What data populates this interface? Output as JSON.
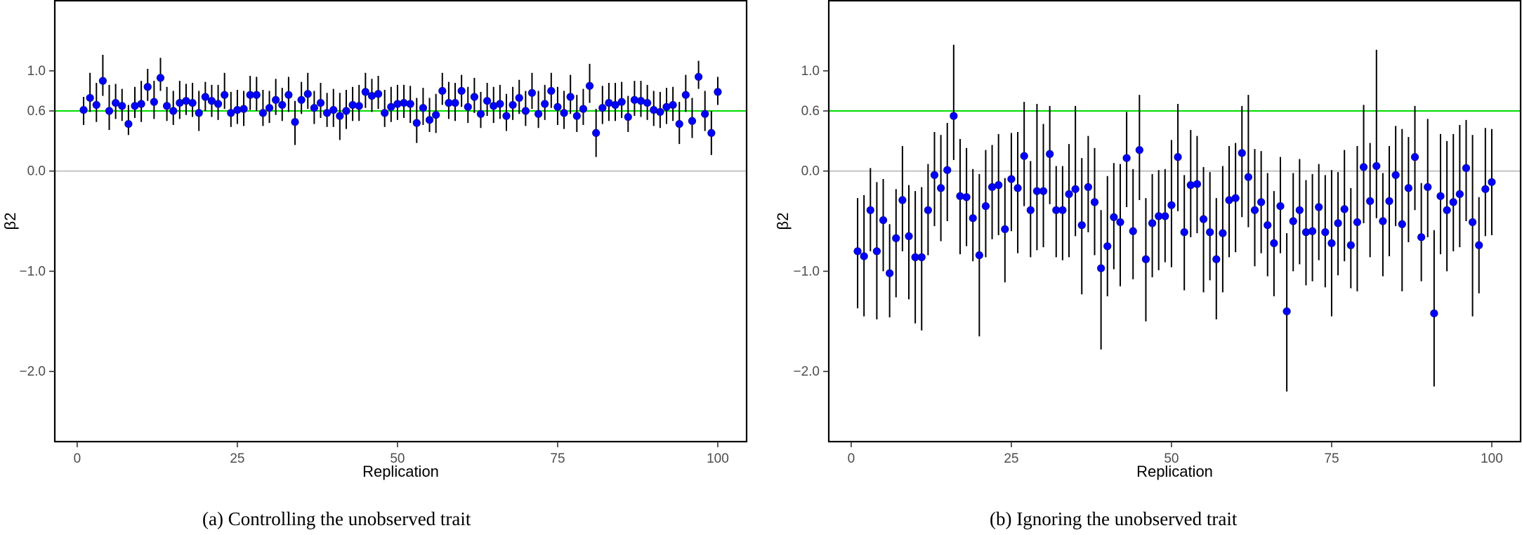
{
  "chart_data": [
    {
      "type": "scatter",
      "subtype": "point-with-error-bars",
      "caption": "(a) Controlling the unobserved trait",
      "xlabel": "Replication",
      "ylabel": "β2",
      "xlim": [
        -3.5,
        104.5
      ],
      "ylim": [
        -2.7,
        1.7
      ],
      "xticks": [
        0,
        25,
        50,
        75,
        100
      ],
      "xtick_labels": [
        "0",
        "25",
        "50",
        "75",
        "100"
      ],
      "yticks": [
        1.0,
        0.6,
        0.0,
        -1.0,
        -2.0
      ],
      "ytick_labels": [
        "1.0",
        "0.6",
        "0.0",
        "−1.0",
        "−2.0"
      ],
      "reference_lines": [
        {
          "value": 0.6,
          "color": "#00dd00"
        },
        {
          "value": 0.0,
          "color": "#b3b3b3"
        }
      ],
      "x": [
        1,
        2,
        3,
        4,
        5,
        6,
        7,
        8,
        9,
        10,
        11,
        12,
        13,
        14,
        15,
        16,
        17,
        18,
        19,
        20,
        21,
        22,
        23,
        24,
        25,
        26,
        27,
        28,
        29,
        30,
        31,
        32,
        33,
        34,
        35,
        36,
        37,
        38,
        39,
        40,
        41,
        42,
        43,
        44,
        45,
        46,
        47,
        48,
        49,
        50,
        51,
        52,
        53,
        54,
        55,
        56,
        57,
        58,
        59,
        60,
        61,
        62,
        63,
        64,
        65,
        66,
        67,
        68,
        69,
        70,
        71,
        72,
        73,
        74,
        75,
        76,
        77,
        78,
        79,
        80,
        81,
        82,
        83,
        84,
        85,
        86,
        87,
        88,
        89,
        90,
        91,
        92,
        93,
        94,
        95,
        96,
        97,
        98,
        99,
        100
      ],
      "estimate": [
        0.61,
        0.73,
        0.66,
        0.9,
        0.6,
        0.68,
        0.65,
        0.47,
        0.65,
        0.67,
        0.84,
        0.69,
        0.93,
        0.65,
        0.6,
        0.68,
        0.7,
        0.68,
        0.58,
        0.74,
        0.7,
        0.67,
        0.76,
        0.58,
        0.61,
        0.62,
        0.76,
        0.76,
        0.58,
        0.63,
        0.71,
        0.66,
        0.76,
        0.49,
        0.71,
        0.77,
        0.63,
        0.68,
        0.58,
        0.61,
        0.55,
        0.6,
        0.66,
        0.65,
        0.79,
        0.75,
        0.77,
        0.58,
        0.64,
        0.67,
        0.68,
        0.67,
        0.48,
        0.63,
        0.51,
        0.56,
        0.8,
        0.68,
        0.68,
        0.8,
        0.64,
        0.74,
        0.57,
        0.7,
        0.65,
        0.67,
        0.55,
        0.66,
        0.73,
        0.6,
        0.78,
        0.57,
        0.67,
        0.8,
        0.64,
        0.58,
        0.74,
        0.55,
        0.62,
        0.85,
        0.38,
        0.63,
        0.68,
        0.66,
        0.69,
        0.54,
        0.71,
        0.7,
        0.68,
        0.61,
        0.59,
        0.64,
        0.66,
        0.47,
        0.76,
        0.5,
        0.94,
        0.57,
        0.38,
        0.79
      ],
      "ci_low": [
        0.46,
        0.59,
        0.49,
        0.75,
        0.41,
        0.52,
        0.5,
        0.36,
        0.53,
        0.49,
        0.7,
        0.52,
        0.8,
        0.5,
        0.46,
        0.52,
        0.56,
        0.54,
        0.4,
        0.6,
        0.54,
        0.51,
        0.62,
        0.44,
        0.47,
        0.45,
        0.61,
        0.6,
        0.45,
        0.48,
        0.56,
        0.5,
        0.59,
        0.26,
        0.57,
        0.62,
        0.47,
        0.53,
        0.44,
        0.44,
        0.31,
        0.42,
        0.5,
        0.5,
        0.63,
        0.59,
        0.62,
        0.44,
        0.49,
        0.51,
        0.53,
        0.48,
        0.28,
        0.46,
        0.39,
        0.38,
        0.66,
        0.52,
        0.5,
        0.64,
        0.48,
        0.58,
        0.43,
        0.55,
        0.48,
        0.52,
        0.4,
        0.51,
        0.57,
        0.45,
        0.62,
        0.43,
        0.51,
        0.63,
        0.46,
        0.42,
        0.57,
        0.39,
        0.46,
        0.68,
        0.14,
        0.47,
        0.5,
        0.5,
        0.53,
        0.39,
        0.55,
        0.54,
        0.51,
        0.45,
        0.43,
        0.47,
        0.5,
        0.27,
        0.59,
        0.33,
        0.82,
        0.4,
        0.16,
        0.66
      ],
      "ci_high": [
        0.74,
        0.98,
        0.88,
        1.16,
        0.86,
        0.87,
        0.82,
        0.66,
        0.84,
        0.9,
        1.02,
        0.9,
        1.13,
        0.84,
        0.8,
        0.9,
        0.87,
        0.88,
        0.8,
        0.89,
        0.86,
        0.86,
        0.98,
        0.79,
        0.81,
        0.8,
        0.95,
        0.94,
        0.81,
        0.8,
        0.92,
        0.83,
        0.94,
        0.7,
        0.89,
        0.98,
        0.8,
        0.88,
        0.78,
        0.82,
        0.78,
        0.81,
        0.84,
        0.86,
        0.98,
        0.92,
        0.95,
        0.81,
        0.84,
        0.86,
        0.86,
        0.85,
        0.73,
        0.83,
        0.73,
        0.77,
        0.98,
        0.89,
        0.88,
        0.96,
        0.84,
        0.93,
        0.79,
        0.88,
        0.84,
        0.86,
        0.77,
        0.84,
        0.91,
        0.8,
        0.98,
        0.8,
        0.86,
        0.98,
        0.84,
        0.8,
        0.96,
        0.76,
        0.82,
        1.07,
        0.62,
        0.85,
        0.88,
        0.88,
        0.89,
        0.75,
        0.9,
        0.9,
        0.86,
        0.8,
        0.79,
        0.83,
        0.84,
        0.69,
        0.96,
        0.73,
        1.1,
        0.8,
        0.6,
        0.94
      ]
    },
    {
      "type": "scatter",
      "subtype": "point-with-error-bars",
      "caption": "(b) Ignoring the unobserved trait",
      "xlabel": "Replication",
      "ylabel": "β2",
      "xlim": [
        -3.5,
        104.5
      ],
      "ylim": [
        -2.7,
        1.7
      ],
      "xticks": [
        0,
        25,
        50,
        75,
        100
      ],
      "xtick_labels": [
        "0",
        "25",
        "50",
        "75",
        "100"
      ],
      "yticks": [
        1.0,
        0.6,
        0.0,
        -1.0,
        -2.0
      ],
      "ytick_labels": [
        "1.0",
        "0.6",
        "0.0",
        "−1.0",
        "−2.0"
      ],
      "reference_lines": [
        {
          "value": 0.6,
          "color": "#00dd00"
        },
        {
          "value": 0.0,
          "color": "#b3b3b3"
        }
      ],
      "x": [
        1,
        2,
        3,
        4,
        5,
        6,
        7,
        8,
        9,
        10,
        11,
        12,
        13,
        14,
        15,
        16,
        17,
        18,
        19,
        20,
        21,
        22,
        23,
        24,
        25,
        26,
        27,
        28,
        29,
        30,
        31,
        32,
        33,
        34,
        35,
        36,
        37,
        38,
        39,
        40,
        41,
        42,
        43,
        44,
        45,
        46,
        47,
        48,
        49,
        50,
        51,
        52,
        53,
        54,
        55,
        56,
        57,
        58,
        59,
        60,
        61,
        62,
        63,
        64,
        65,
        66,
        67,
        68,
        69,
        70,
        71,
        72,
        73,
        74,
        75,
        76,
        77,
        78,
        79,
        80,
        81,
        82,
        83,
        84,
        85,
        86,
        87,
        88,
        89,
        90,
        91,
        92,
        93,
        94,
        95,
        96,
        97,
        98,
        99,
        100
      ],
      "estimate": [
        -0.8,
        -0.85,
        -0.39,
        -0.8,
        -0.49,
        -1.02,
        -0.67,
        -0.29,
        -0.65,
        -0.86,
        -0.86,
        -0.39,
        -0.04,
        -0.17,
        0.01,
        0.55,
        -0.25,
        -0.26,
        -0.47,
        -0.84,
        -0.35,
        -0.16,
        -0.14,
        -0.58,
        -0.08,
        -0.17,
        0.15,
        -0.39,
        -0.2,
        -0.2,
        0.17,
        -0.39,
        -0.39,
        -0.23,
        -0.18,
        -0.54,
        -0.16,
        -0.31,
        -0.97,
        -0.75,
        -0.46,
        -0.51,
        0.13,
        -0.6,
        0.21,
        -0.88,
        -0.52,
        -0.45,
        -0.45,
        -0.34,
        0.14,
        -0.61,
        -0.14,
        -0.13,
        -0.48,
        -0.61,
        -0.88,
        -0.62,
        -0.29,
        -0.27,
        0.18,
        -0.06,
        -0.39,
        -0.31,
        -0.54,
        -0.72,
        -0.35,
        -1.4,
        -0.5,
        -0.39,
        -0.61,
        -0.6,
        -0.36,
        -0.61,
        -0.72,
        -0.52,
        -0.38,
        -0.74,
        -0.51,
        0.04,
        -0.3,
        0.05,
        -0.5,
        -0.3,
        -0.04,
        -0.53,
        -0.17,
        0.14,
        -0.66,
        -0.16,
        -1.42,
        -0.25,
        -0.39,
        -0.31,
        -0.23,
        0.03,
        -0.51,
        -0.74,
        -0.18,
        -0.11
      ],
      "ci_low": [
        -1.37,
        -1.45,
        -0.8,
        -1.48,
        -1.0,
        -1.46,
        -1.26,
        -0.8,
        -1.28,
        -1.52,
        -1.59,
        -0.84,
        -0.55,
        -0.7,
        -0.5,
        0.11,
        -0.83,
        -0.75,
        -0.9,
        -1.65,
        -0.86,
        -0.68,
        -0.64,
        -1.11,
        -0.6,
        -0.82,
        -0.35,
        -0.86,
        -0.79,
        -0.76,
        -0.33,
        -0.86,
        -0.89,
        -0.86,
        -0.65,
        -1.23,
        -0.61,
        -0.84,
        -1.78,
        -1.25,
        -0.98,
        -1.15,
        -0.36,
        -1.08,
        -0.29,
        -1.5,
        -1.06,
        -0.99,
        -0.91,
        -0.96,
        -0.4,
        -1.19,
        -0.66,
        -0.62,
        -1.21,
        -1.09,
        -1.48,
        -1.21,
        -0.86,
        -0.81,
        -0.46,
        -0.56,
        -0.95,
        -0.82,
        -1.05,
        -1.25,
        -0.82,
        -2.2,
        -1.0,
        -0.93,
        -1.14,
        -1.1,
        -0.89,
        -1.16,
        -1.45,
        -1.04,
        -0.9,
        -1.17,
        -1.2,
        -0.52,
        -0.86,
        -0.47,
        -1.05,
        -0.85,
        -0.55,
        -1.2,
        -0.71,
        -0.39,
        -1.1,
        -0.66,
        -2.15,
        -0.83,
        -1.0,
        -0.8,
        -0.76,
        -0.5,
        -1.45,
        -1.22,
        -0.65,
        -0.64
      ],
      "ci_high": [
        -0.27,
        -0.24,
        0.03,
        -0.11,
        -0.08,
        -0.53,
        -0.18,
        0.25,
        -0.14,
        -0.2,
        -0.16,
        0.07,
        0.39,
        0.36,
        0.48,
        1.26,
        0.32,
        0.23,
        0.02,
        -0.03,
        0.21,
        0.26,
        0.37,
        -0.07,
        0.38,
        0.39,
        0.69,
        0.1,
        0.67,
        0.47,
        0.65,
        0.05,
        0.05,
        0.27,
        0.65,
        0.13,
        0.35,
        0.23,
        -0.39,
        -0.05,
        0.08,
        0.07,
        0.59,
        0.02,
        0.76,
        -0.27,
        -0.03,
        0.01,
        0.02,
        0.31,
        0.67,
        -0.04,
        0.41,
        0.35,
        0.04,
        -0.01,
        -0.27,
        0.05,
        0.25,
        0.28,
        0.65,
        0.76,
        0.22,
        0.2,
        -0.02,
        -0.2,
        0.14,
        -0.62,
        -0.02,
        0.12,
        -0.09,
        -0.03,
        0.07,
        -0.04,
        0.01,
        -0.01,
        0.21,
        -0.17,
        0.25,
        0.66,
        0.28,
        1.21,
        -0.02,
        0.25,
        0.45,
        0.42,
        0.34,
        0.65,
        -0.12,
        0.52,
        -0.59,
        0.37,
        0.3,
        0.37,
        0.46,
        0.51,
        0.36,
        -0.26,
        0.43,
        0.42
      ]
    }
  ]
}
